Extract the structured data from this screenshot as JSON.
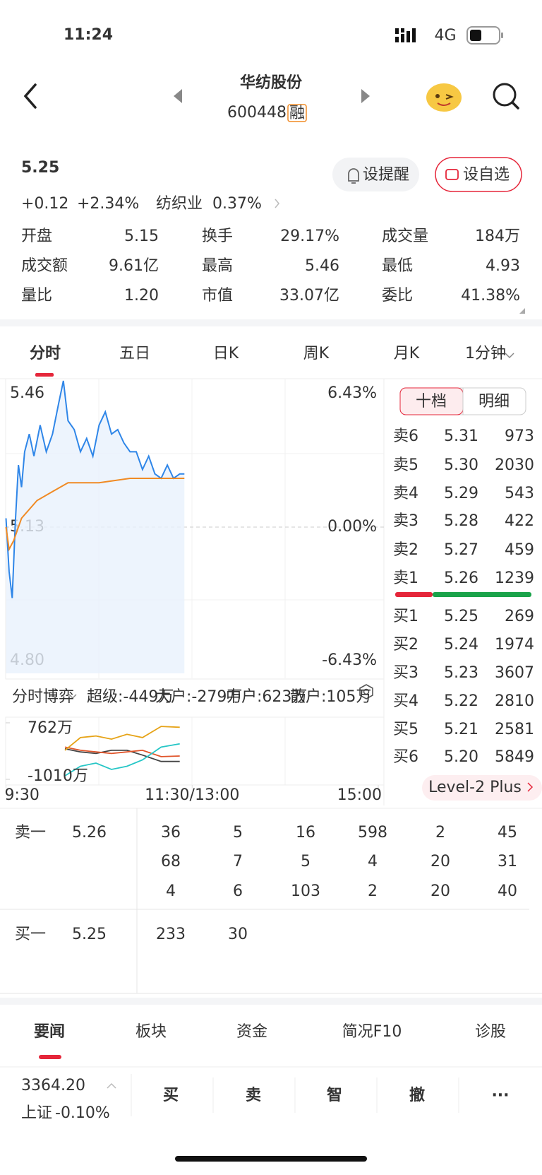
{
  "status": {
    "time": "11:24",
    "network": "4G"
  },
  "header": {
    "title": "华纺股份",
    "code": "600448",
    "badge": "融"
  },
  "quote": {
    "price": "5.25",
    "change": "+0.12",
    "change_pct": "+2.34%",
    "industry": "纺织业",
    "industry_pct": "0.37%",
    "buttons": [
      "设提醒",
      "设自选"
    ]
  },
  "stats": [
    {
      "label": "开盘",
      "value": "5.15",
      "color": "#e5263a"
    },
    {
      "label": "换手",
      "value": "29.17%",
      "color": "#333333"
    },
    {
      "label": "成交量",
      "value": "184万",
      "color": "#333333"
    },
    {
      "label": "成交额",
      "value": "9.61亿",
      "color": "#333333"
    },
    {
      "label": "最高",
      "value": "5.46",
      "color": "#e5263a"
    },
    {
      "label": "最低",
      "value": "4.93",
      "color": "#1aa34a"
    },
    {
      "label": "量比",
      "value": "1.20",
      "color": "#333333"
    },
    {
      "label": "市值",
      "value": "33.07亿",
      "color": "#333333"
    },
    {
      "label": "委比",
      "value": "41.38%",
      "color": "#e5263a"
    }
  ],
  "tabs": [
    "分时",
    "五日",
    "日K",
    "周K",
    "月K",
    "1分钟"
  ],
  "chart": {
    "ylim": [
      4.8,
      5.46
    ],
    "yticks": [
      5.46,
      5.13,
      {
        "value": 4.8,
        "label": "4.80"
      }
    ],
    "pct_ticks": [
      {
        "value": 6.43,
        "label": "6.43%"
      },
      {
        "value": 0,
        "label": "0.00%"
      },
      {
        "value": -6.43,
        "label": "-6.43%"
      }
    ],
    "xlim": [
      0,
      240
    ],
    "xticks": [
      {
        "value": 0,
        "label": "9:30"
      },
      {
        "value": 120,
        "label": "11:30/13:00"
      },
      {
        "value": 240,
        "label": "15:00"
      }
    ],
    "price": {
      "color": "#2f86e8",
      "x": [
        0,
        2,
        4,
        6,
        8,
        10,
        12,
        15,
        18,
        22,
        26,
        30,
        34,
        37,
        40,
        44,
        48,
        52,
        56,
        60,
        64,
        68,
        72,
        76,
        80,
        84,
        88,
        92,
        96,
        100,
        104,
        108,
        112,
        115
      ],
      "values": [
        5.15,
        5.03,
        4.97,
        5.14,
        5.27,
        5.22,
        5.3,
        5.34,
        5.29,
        5.36,
        5.3,
        5.34,
        5.41,
        5.46,
        5.37,
        5.35,
        5.3,
        5.33,
        5.29,
        5.36,
        5.39,
        5.34,
        5.35,
        5.32,
        5.3,
        5.3,
        5.26,
        5.29,
        5.25,
        5.24,
        5.27,
        5.24,
        5.25,
        5.25
      ]
    },
    "average": {
      "color": "#f08a24",
      "x": [
        0,
        2,
        5,
        10,
        20,
        30,
        40,
        60,
        80,
        115
      ],
      "values": [
        5.13,
        5.08,
        5.1,
        5.15,
        5.19,
        5.21,
        5.23,
        5.23,
        5.24,
        5.24
      ]
    }
  },
  "flow": {
    "title": "分时博弈",
    "ylim": [
      -1010,
      762
    ],
    "yticks": [
      {
        "value": 762,
        "label": "762万"
      },
      {
        "value": -1010,
        "label": "-1010万"
      }
    ],
    "x": [
      38,
      48,
      58,
      68,
      78,
      88,
      100,
      112
    ],
    "series": [
      {
        "label": "超级:-449万",
        "color": "#444444",
        "values": [
          -50,
          -150,
          -200,
          -100,
          -100,
          -250,
          -450,
          -449
        ]
      },
      {
        "label": "大户:-279万",
        "color": "#e0542a",
        "values": [
          0,
          -100,
          -150,
          -200,
          -150,
          -100,
          -300,
          -279
        ]
      },
      {
        "label": "中户:623万",
        "color": "#e6a317",
        "values": [
          -100,
          300,
          350,
          250,
          400,
          300,
          650,
          623
        ]
      },
      {
        "label": "散户:105万",
        "color": "#26c6c6",
        "values": [
          -900,
          -600,
          -500,
          -700,
          -600,
          -400,
          0,
          105
        ]
      }
    ]
  },
  "orderbook": {
    "tabs": [
      "十档",
      "明细"
    ],
    "asks": [
      [
        "卖6",
        "5.31",
        "973"
      ],
      [
        "卖5",
        "5.30",
        "2030"
      ],
      [
        "卖4",
        "5.29",
        "543"
      ],
      [
        "卖3",
        "5.28",
        "422"
      ],
      [
        "卖2",
        "5.27",
        "459"
      ],
      [
        "卖1",
        "5.26",
        "1239"
      ]
    ],
    "bids": [
      [
        "买1",
        "5.25",
        "269"
      ],
      [
        "买2",
        "5.24",
        "1974"
      ],
      [
        "买3",
        "5.23",
        "3607"
      ],
      [
        "买4",
        "5.22",
        "2810"
      ],
      [
        "买5",
        "5.21",
        "2581"
      ],
      [
        "买6",
        "5.20",
        "5849"
      ]
    ],
    "level2": "Level-2 Plus"
  },
  "ticks": {
    "sell": {
      "label": "卖一",
      "price": "5.26",
      "rows": [
        [
          36,
          5,
          16,
          598,
          2,
          45
        ],
        [
          68,
          7,
          5,
          4,
          20,
          31
        ],
        [
          4,
          6,
          103,
          2,
          20,
          40
        ]
      ]
    },
    "buy": {
      "label": "买一",
      "price": "5.25",
      "rows": [
        [
          233,
          30
        ]
      ]
    }
  },
  "news_tabs": [
    "要闻",
    "板块",
    "资金",
    "简况F10",
    "诊股"
  ],
  "bottom": {
    "index": "3364.20",
    "index_name": "上证",
    "index_pct": "-0.10%",
    "actions": [
      "买",
      "卖",
      "智",
      "撤",
      "···"
    ]
  }
}
